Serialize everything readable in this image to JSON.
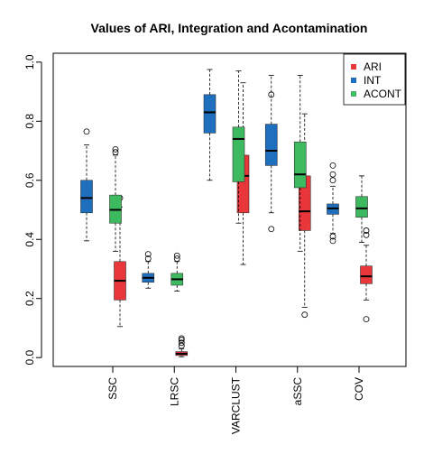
{
  "chart_data": {
    "type": "boxplot",
    "title": "Values of ARI, Integration and Acontamination",
    "xlabel": "",
    "ylabel": "",
    "ylim": [
      -0.03,
      1.03
    ],
    "yticks": [
      0.0,
      0.2,
      0.4,
      0.6,
      0.8,
      1.0
    ],
    "ytick_labels": [
      "0.0",
      "0.2",
      "0.4",
      "0.6",
      "0.8",
      "1.0"
    ],
    "categories": [
      "SSC",
      "LRSC",
      "VARCLUST",
      "aSSC",
      "COV"
    ],
    "legend": {
      "position": "top-right"
    },
    "series": [
      {
        "name": "ARI",
        "color": "#e8363a",
        "boxes": [
          {
            "whisker_low": 0.105,
            "q1": 0.195,
            "median": 0.26,
            "q3": 0.325,
            "whisker_high": 0.51,
            "outliers": [
              0.54
            ]
          },
          {
            "whisker_low": 0.003,
            "q1": 0.007,
            "median": 0.013,
            "q3": 0.02,
            "whisker_high": 0.03,
            "outliers": [
              0.04,
              0.05,
              0.06,
              0.065
            ]
          },
          {
            "whisker_low": 0.315,
            "q1": 0.49,
            "median": 0.615,
            "q3": 0.685,
            "whisker_high": 0.93,
            "outliers": []
          },
          {
            "whisker_low": 0.17,
            "q1": 0.43,
            "median": 0.495,
            "q3": 0.615,
            "whisker_high": 0.825,
            "outliers": [
              0.145
            ]
          },
          {
            "whisker_low": 0.195,
            "q1": 0.25,
            "median": 0.275,
            "q3": 0.31,
            "whisker_high": 0.38,
            "outliers": [
              0.415,
              0.43,
              0.13
            ]
          }
        ]
      },
      {
        "name": "INT",
        "color": "#1f6fbf",
        "boxes": [
          {
            "whisker_low": 0.395,
            "q1": 0.49,
            "median": 0.54,
            "q3": 0.6,
            "whisker_high": 0.72,
            "outliers": [
              0.765
            ]
          },
          {
            "whisker_low": 0.235,
            "q1": 0.255,
            "median": 0.27,
            "q3": 0.285,
            "whisker_high": 0.325,
            "outliers": [
              0.335,
              0.35
            ]
          },
          {
            "whisker_low": 0.6,
            "q1": 0.76,
            "median": 0.83,
            "q3": 0.89,
            "whisker_high": 0.975,
            "outliers": []
          },
          {
            "whisker_low": 0.49,
            "q1": 0.65,
            "median": 0.7,
            "q3": 0.79,
            "whisker_high": 0.955,
            "outliers": [
              0.435,
              0.89
            ]
          },
          {
            "whisker_low": 0.42,
            "q1": 0.485,
            "median": 0.505,
            "q3": 0.52,
            "whisker_high": 0.58,
            "outliers": [
              0.41,
              0.395,
              0.6,
              0.62,
              0.65
            ]
          }
        ]
      },
      {
        "name": "ACONT",
        "color": "#3dba5f",
        "boxes": [
          {
            "whisker_low": 0.36,
            "q1": 0.455,
            "median": 0.5,
            "q3": 0.55,
            "whisker_high": 0.685,
            "outliers": [
              0.695,
              0.705
            ]
          },
          {
            "whisker_low": 0.225,
            "q1": 0.245,
            "median": 0.265,
            "q3": 0.285,
            "whisker_high": 0.325,
            "outliers": [
              0.335,
              0.345
            ]
          },
          {
            "whisker_low": 0.455,
            "q1": 0.595,
            "median": 0.74,
            "q3": 0.78,
            "whisker_high": 0.97,
            "outliers": []
          },
          {
            "whisker_low": 0.36,
            "q1": 0.575,
            "median": 0.62,
            "q3": 0.73,
            "whisker_high": 0.955,
            "outliers": []
          },
          {
            "whisker_low": 0.39,
            "q1": 0.475,
            "median": 0.505,
            "q3": 0.545,
            "whisker_high": 0.615,
            "outliers": []
          }
        ]
      }
    ]
  }
}
